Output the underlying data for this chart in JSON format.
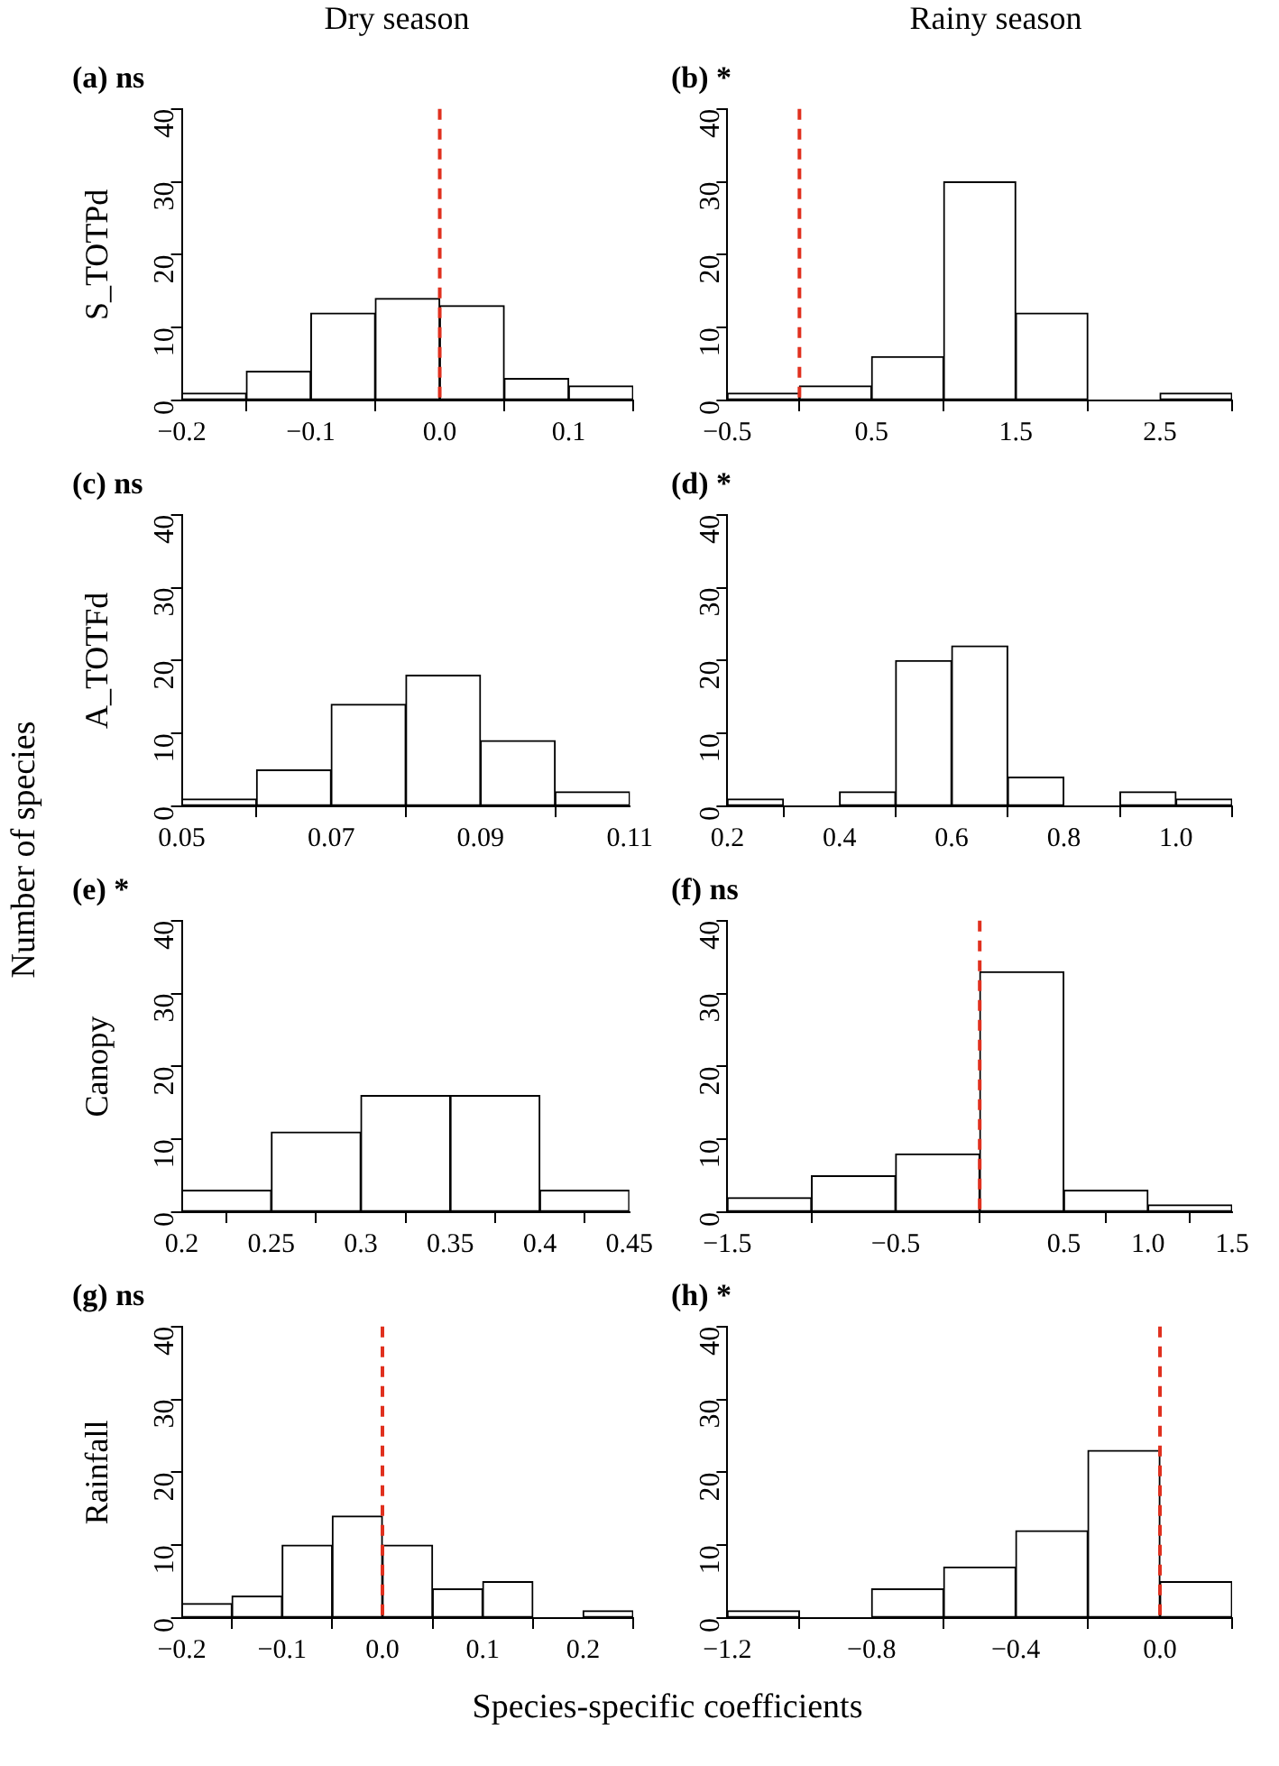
{
  "chart_data": [
    {
      "type": "histogram",
      "title": "(a) ns",
      "subtitle": "Dry season",
      "ylabel": "S_TOTPd",
      "bins": [
        -0.2,
        -0.15,
        -0.1,
        -0.05,
        0,
        0.05,
        0.1,
        0.15
      ],
      "values": [
        1,
        4,
        12,
        14,
        13,
        3,
        2
      ],
      "color": "#ffffff",
      "xlim": [
        -0.2,
        0.15
      ],
      "xticks": [
        {
          "value": -0.2,
          "label": "−0.2"
        },
        {
          "value": -0.1,
          "label": "−0.1"
        },
        {
          "value": 0,
          "label": "0.0"
        },
        0.1
      ],
      "ylim": [
        0,
        40
      ],
      "yticks": [
        0,
        10,
        20,
        30,
        40
      ],
      "ref_lines": [
        {
          "axis": "x",
          "value": 0,
          "color": "#e0301e",
          "line_style": "dashed"
        }
      ],
      "annotations": [
        "Number of  species"
      ]
    },
    {
      "type": "histogram",
      "title": "(b) *",
      "subtitle": "Rainy season",
      "bins": [
        -0.5,
        0,
        0.5,
        1,
        1.5,
        2,
        2.5,
        3
      ],
      "values": [
        1,
        2,
        6,
        30,
        12,
        0,
        1
      ],
      "color": "#ffffff",
      "xlim": [
        -0.5,
        3
      ],
      "xticks": [
        {
          "value": -0.5,
          "label": "−0.5"
        },
        0.5,
        1.5,
        2.5
      ],
      "ylim": [
        0,
        40
      ],
      "yticks": [
        0,
        10,
        20,
        30,
        40
      ],
      "ref_lines": [
        {
          "axis": "x",
          "value": 0,
          "color": "#e0301e",
          "line_style": "dashed"
        }
      ]
    },
    {
      "type": "histogram",
      "title": "(c) ns",
      "ylabel": "A_TOTFd",
      "bins": [
        0.05,
        0.06,
        0.07,
        0.08,
        0.09,
        0.1,
        0.11
      ],
      "values": [
        1,
        5,
        14,
        18,
        9,
        2
      ],
      "color": "#ffffff",
      "xlim": [
        0.05,
        0.11
      ],
      "xticks": [
        0.05,
        0.07,
        0.09,
        0.11
      ],
      "ylim": [
        0,
        40
      ],
      "yticks": [
        0,
        10,
        20,
        30,
        40
      ]
    },
    {
      "type": "histogram",
      "title": "(d) *",
      "bins": [
        0.2,
        0.3,
        0.4,
        0.5,
        0.6,
        0.7,
        0.8,
        0.9,
        1,
        1.1
      ],
      "values": [
        1,
        0,
        2,
        20,
        22,
        4,
        0,
        2,
        1
      ],
      "color": "#ffffff",
      "xlim": [
        0.2,
        1.1
      ],
      "xticks": [
        0.2,
        0.4,
        0.6,
        0.8,
        {
          "value": 1,
          "label": "1.0"
        }
      ],
      "ylim": [
        0,
        40
      ],
      "yticks": [
        0,
        10,
        20,
        30,
        40
      ]
    },
    {
      "type": "histogram",
      "title": "(e) *",
      "ylabel": "Canopy",
      "bins": [
        0.2,
        0.25,
        0.3,
        0.35,
        0.4,
        0.45
      ],
      "values": [
        3,
        11,
        16,
        16,
        3
      ],
      "color": "#ffffff",
      "xlim": [
        0.2,
        0.45
      ],
      "xticks": [
        0.2,
        0.25,
        0.3,
        0.35,
        0.4,
        0.45
      ],
      "ylim": [
        0,
        40
      ],
      "yticks": [
        0,
        10,
        20,
        30,
        40
      ]
    },
    {
      "type": "histogram",
      "title": "(f) ns",
      "bins": [
        -1.5,
        -1,
        -0.5,
        0,
        0.5,
        1,
        1.5
      ],
      "values": [
        2,
        5,
        8,
        33,
        3,
        1
      ],
      "color": "#ffffff",
      "xlim": [
        -1.5,
        1.5
      ],
      "xticks": [
        {
          "value": -1.5,
          "label": "−1.5"
        },
        {
          "value": -0.5,
          "label": "−0.5"
        },
        0.5,
        {
          "value": 1,
          "label": "1.0"
        },
        1.5
      ],
      "ylim": [
        0,
        40
      ],
      "yticks": [
        0,
        10,
        20,
        30,
        40
      ],
      "ref_lines": [
        {
          "axis": "x",
          "value": 0,
          "color": "#e0301e",
          "line_style": "dashed"
        }
      ]
    },
    {
      "type": "histogram",
      "title": "(g) ns",
      "ylabel": "Rainfall",
      "bins": [
        -0.2,
        -0.15,
        -0.1,
        -0.05,
        0,
        0.05,
        0.1,
        0.15,
        0.2,
        0.25
      ],
      "values": [
        2,
        3,
        10,
        14,
        10,
        4,
        5,
        0,
        1
      ],
      "color": "#ffffff",
      "xlim": [
        -0.2,
        0.25
      ],
      "xticks": [
        {
          "value": -0.2,
          "label": "−0.2"
        },
        {
          "value": -0.1,
          "label": "−0.1"
        },
        {
          "value": 0,
          "label": "0.0"
        },
        0.1,
        0.2
      ],
      "ylim": [
        0,
        40
      ],
      "yticks": [
        0,
        10,
        20,
        30,
        40
      ],
      "ref_lines": [
        {
          "axis": "x",
          "value": 0,
          "color": "#e0301e",
          "line_style": "dashed"
        }
      ]
    },
    {
      "type": "histogram",
      "title": "(h) *",
      "bins": [
        -1.2,
        -1,
        -0.8,
        -0.6,
        -0.4,
        -0.2,
        0,
        0.2
      ],
      "values": [
        1,
        0,
        4,
        7,
        12,
        23,
        5
      ],
      "color": "#ffffff",
      "xlim": [
        -1.2,
        0.2
      ],
      "xticks": [
        {
          "value": -1.2,
          "label": "−1.2"
        },
        {
          "value": -0.8,
          "label": "−0.8"
        },
        {
          "value": -0.4,
          "label": "−0.4"
        },
        {
          "value": 0,
          "label": "0.0"
        }
      ],
      "ylim": [
        0,
        40
      ],
      "yticks": [
        0,
        10,
        20,
        30,
        40
      ],
      "ref_lines": [
        {
          "axis": "x",
          "value": 0,
          "color": "#e0301e",
          "line_style": "dashed"
        }
      ],
      "annotations": [
        "Species-specific coefficients"
      ]
    }
  ]
}
